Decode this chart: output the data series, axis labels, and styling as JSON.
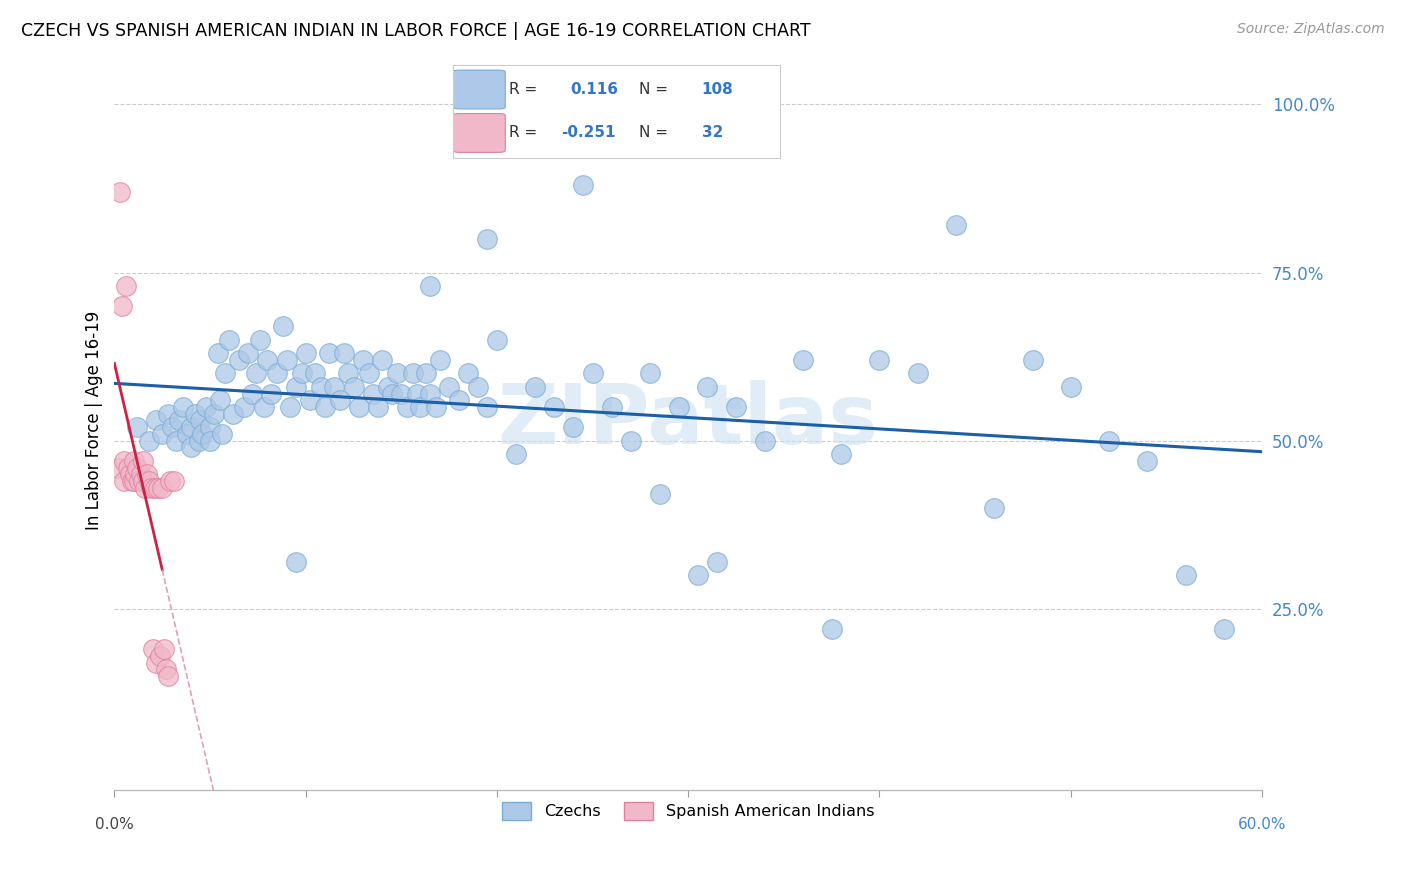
{
  "title": "CZECH VS SPANISH AMERICAN INDIAN IN LABOR FORCE | AGE 16-19 CORRELATION CHART",
  "source": "Source: ZipAtlas.com",
  "ylabel": "In Labor Force | Age 16-19",
  "xlim": [
    0.0,
    0.6
  ],
  "ylim": [
    -0.02,
    1.08
  ],
  "ytick_positions": [
    0.25,
    0.5,
    0.75,
    1.0
  ],
  "ytick_labels": [
    "25.0%",
    "50.0%",
    "75.0%",
    "100.0%"
  ],
  "legend_R1": "0.116",
  "legend_N1": "108",
  "legend_R2": "-0.251",
  "legend_N2": "32",
  "blue_color": "#adc8e8",
  "blue_edge": "#7aadd4",
  "pink_color": "#f0b8c8",
  "pink_edge": "#e080a0",
  "trend_blue_color": "#1a5fa8",
  "trend_pink_color": "#cc2244",
  "trend_pink_dash_color": "#e0a0b0",
  "watermark_color": "#cce0f0",
  "czech_x": [
    0.012,
    0.018,
    0.022,
    0.025,
    0.028,
    0.03,
    0.032,
    0.034,
    0.036,
    0.038,
    0.04,
    0.04,
    0.042,
    0.044,
    0.045,
    0.046,
    0.048,
    0.05,
    0.05,
    0.052,
    0.054,
    0.055,
    0.056,
    0.058,
    0.06,
    0.062,
    0.065,
    0.068,
    0.07,
    0.072,
    0.074,
    0.076,
    0.078,
    0.08,
    0.082,
    0.085,
    0.088,
    0.09,
    0.092,
    0.095,
    0.098,
    0.1,
    0.102,
    0.105,
    0.108,
    0.11,
    0.112,
    0.115,
    0.118,
    0.12,
    0.122,
    0.125,
    0.128,
    0.13,
    0.133,
    0.135,
    0.138,
    0.14,
    0.143,
    0.145,
    0.148,
    0.15,
    0.153,
    0.156,
    0.158,
    0.16,
    0.163,
    0.165,
    0.168,
    0.17,
    0.175,
    0.18,
    0.185,
    0.19,
    0.195,
    0.2,
    0.21,
    0.22,
    0.23,
    0.24,
    0.25,
    0.26,
    0.27,
    0.28,
    0.295,
    0.31,
    0.325,
    0.34,
    0.36,
    0.38,
    0.4,
    0.42,
    0.44,
    0.46,
    0.48,
    0.5,
    0.52,
    0.54,
    0.56,
    0.58,
    0.305,
    0.315,
    0.245,
    0.165,
    0.095,
    0.195,
    0.285,
    0.375
  ],
  "czech_y": [
    0.52,
    0.5,
    0.53,
    0.51,
    0.54,
    0.52,
    0.5,
    0.53,
    0.55,
    0.51,
    0.52,
    0.49,
    0.54,
    0.5,
    0.53,
    0.51,
    0.55,
    0.52,
    0.5,
    0.54,
    0.63,
    0.56,
    0.51,
    0.6,
    0.65,
    0.54,
    0.62,
    0.55,
    0.63,
    0.57,
    0.6,
    0.65,
    0.55,
    0.62,
    0.57,
    0.6,
    0.67,
    0.62,
    0.55,
    0.58,
    0.6,
    0.63,
    0.56,
    0.6,
    0.58,
    0.55,
    0.63,
    0.58,
    0.56,
    0.63,
    0.6,
    0.58,
    0.55,
    0.62,
    0.6,
    0.57,
    0.55,
    0.62,
    0.58,
    0.57,
    0.6,
    0.57,
    0.55,
    0.6,
    0.57,
    0.55,
    0.6,
    0.57,
    0.55,
    0.62,
    0.58,
    0.56,
    0.6,
    0.58,
    0.55,
    0.65,
    0.48,
    0.58,
    0.55,
    0.52,
    0.6,
    0.55,
    0.5,
    0.6,
    0.55,
    0.58,
    0.55,
    0.5,
    0.62,
    0.48,
    0.62,
    0.6,
    0.82,
    0.4,
    0.62,
    0.58,
    0.5,
    0.47,
    0.3,
    0.22,
    0.3,
    0.32,
    0.88,
    0.73,
    0.32,
    0.8,
    0.42,
    0.22
  ],
  "spanish_x": [
    0.002,
    0.003,
    0.004,
    0.005,
    0.005,
    0.006,
    0.007,
    0.008,
    0.009,
    0.01,
    0.01,
    0.011,
    0.012,
    0.013,
    0.014,
    0.015,
    0.015,
    0.016,
    0.017,
    0.018,
    0.019,
    0.02,
    0.021,
    0.022,
    0.023,
    0.024,
    0.025,
    0.026,
    0.027,
    0.028,
    0.029,
    0.031
  ],
  "spanish_y": [
    0.46,
    0.87,
    0.7,
    0.47,
    0.44,
    0.73,
    0.46,
    0.45,
    0.44,
    0.47,
    0.44,
    0.45,
    0.46,
    0.44,
    0.45,
    0.47,
    0.44,
    0.43,
    0.45,
    0.44,
    0.43,
    0.19,
    0.43,
    0.17,
    0.43,
    0.18,
    0.43,
    0.19,
    0.16,
    0.15,
    0.44,
    0.44
  ]
}
